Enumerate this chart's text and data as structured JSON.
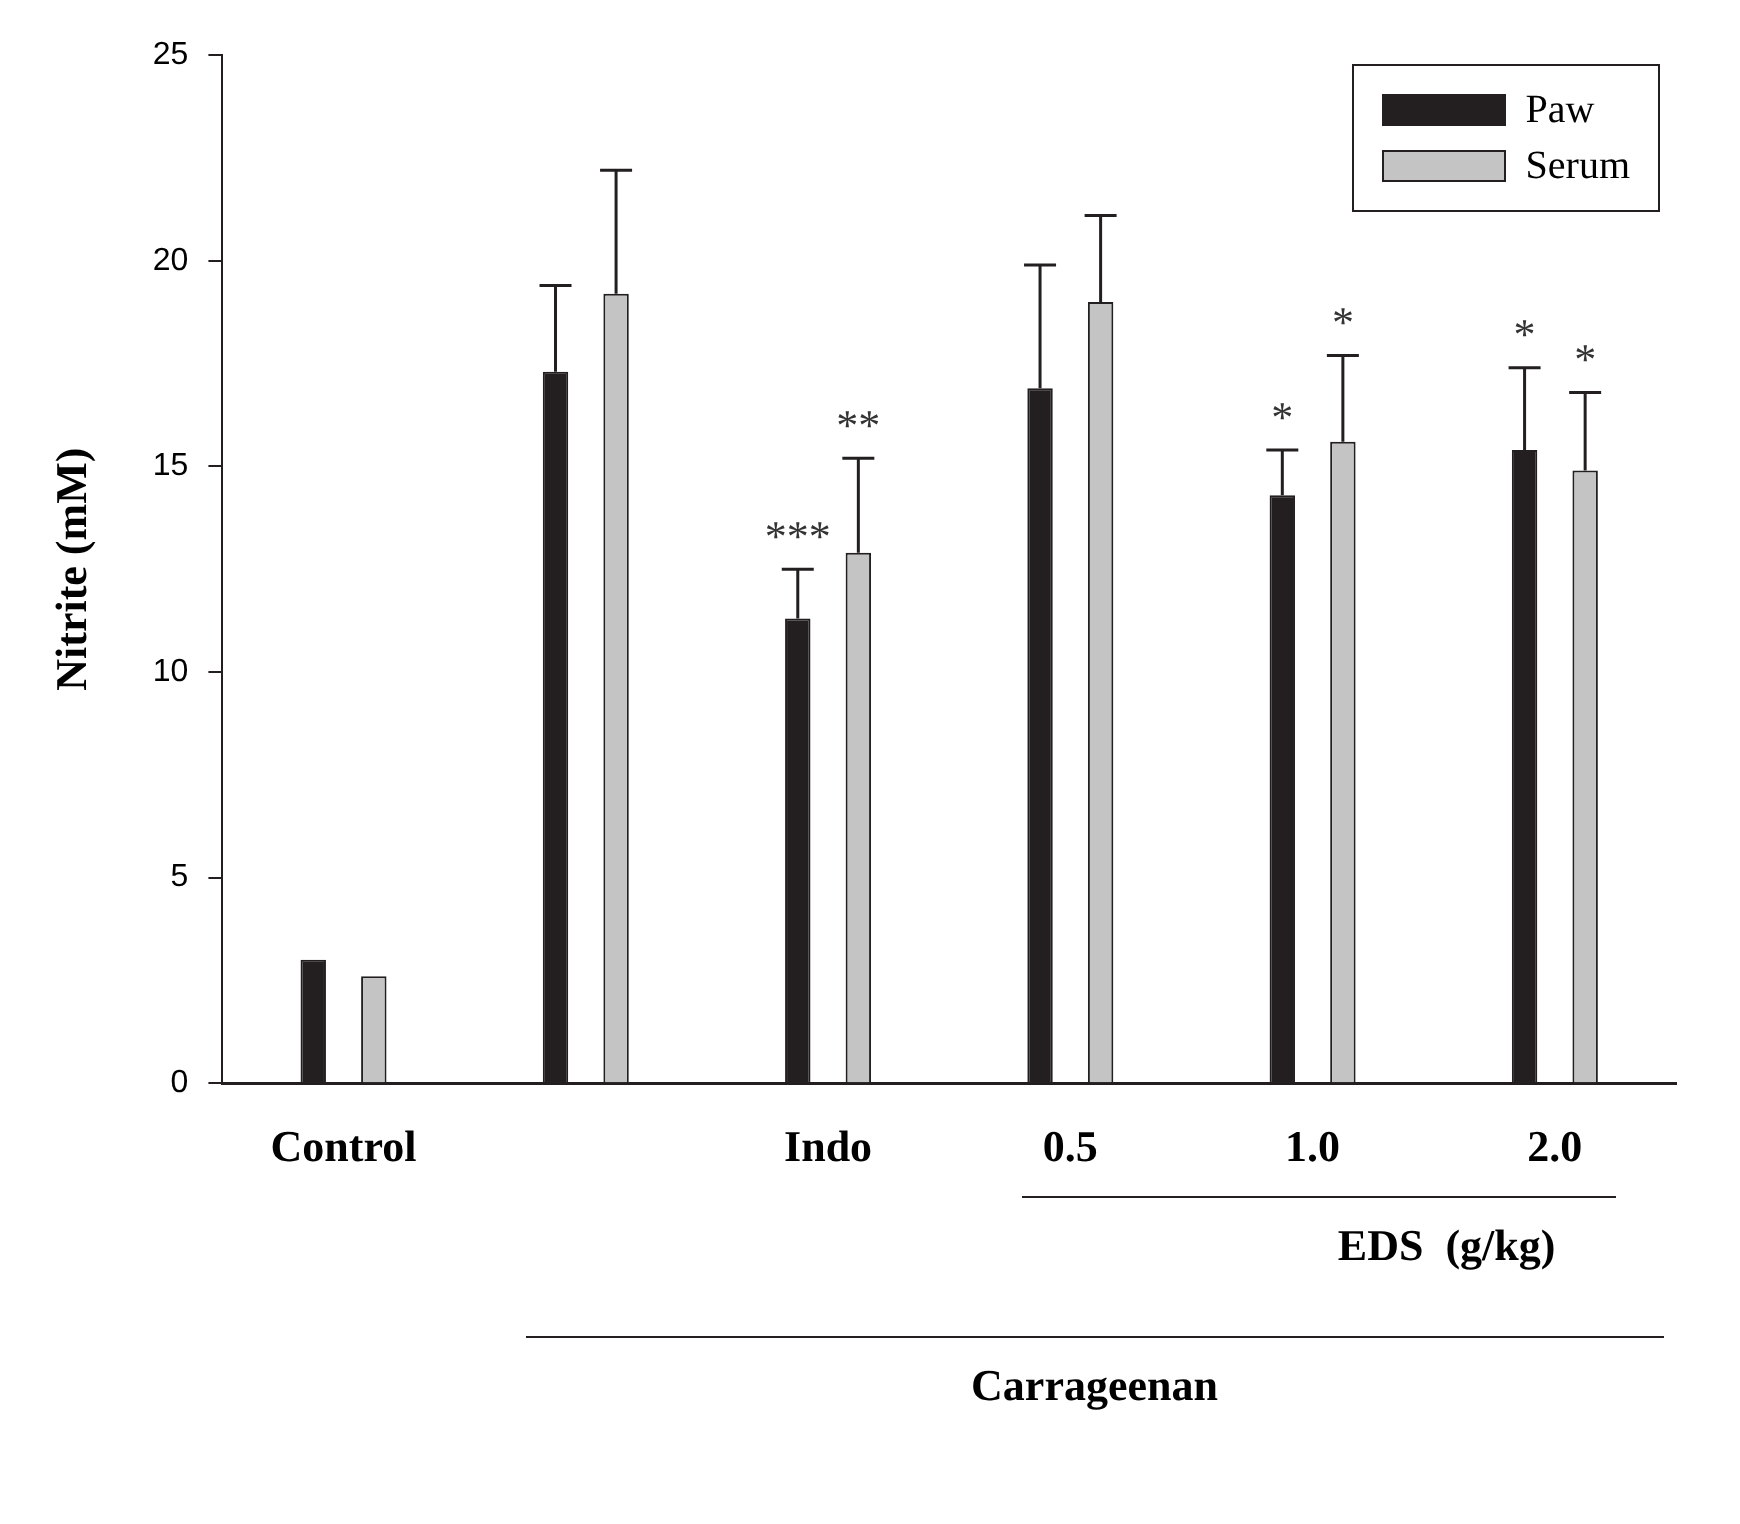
{
  "chart_data": {
    "type": "bar",
    "ylabel": "Nitrite (mM)",
    "categories": [
      "Control",
      null,
      "Indo",
      "0.5",
      "1.0",
      "2.0"
    ],
    "series": [
      {
        "name": "Paw",
        "color": "#231f20",
        "values": [
          3.0,
          17.3,
          11.3,
          16.9,
          14.3,
          15.4
        ],
        "errors": [
          null,
          [
            17.3,
            19.4
          ],
          [
            11.3,
            12.5
          ],
          [
            16.9,
            19.9
          ],
          [
            14.3,
            15.4
          ],
          [
            15.4,
            17.4
          ]
        ]
      },
      {
        "name": "Serum",
        "color": "#c4c4c4",
        "values": [
          2.6,
          19.2,
          12.9,
          19.0,
          15.6,
          14.9
        ],
        "errors": [
          null,
          [
            19.2,
            22.2
          ],
          [
            12.9,
            15.2
          ],
          [
            19.0,
            21.1
          ],
          [
            15.6,
            17.7
          ],
          [
            14.9,
            16.8
          ]
        ]
      }
    ],
    "ylim": [
      0,
      25
    ],
    "yticks": [
      0,
      5,
      10,
      15,
      20,
      25
    ],
    "grid": false,
    "legend": "top right",
    "annotations": [
      "***",
      "**",
      "*",
      "*",
      "*",
      "*",
      "EDS  (g/kg)",
      "Carrageenan"
    ]
  }
}
